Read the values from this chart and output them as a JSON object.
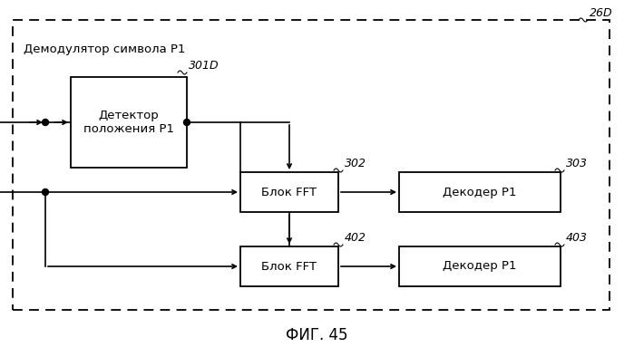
{
  "title": "ФИГ. 45",
  "outer_label": "Демодулятор символа P1",
  "outer_label_id": "26D",
  "box_detector_label": "Детектор\nположения P1",
  "box_detector_id": "301D",
  "box_fft1_label": "Блок FFT",
  "box_fft1_id": "302",
  "box_dec1_label": "Декодер P1",
  "box_dec1_id": "303",
  "box_fft2_label": "Блок FFT",
  "box_fft2_id": "402",
  "box_dec2_label": "Декодер P1",
  "box_dec2_id": "403",
  "bg_color": "#ffffff",
  "box_color": "#ffffff",
  "box_edge": "#000000",
  "text_color": "#000000",
  "title_fontsize": 12,
  "label_fontsize": 9.5,
  "id_fontsize": 9,
  "outer_label_fontsize": 9.5
}
